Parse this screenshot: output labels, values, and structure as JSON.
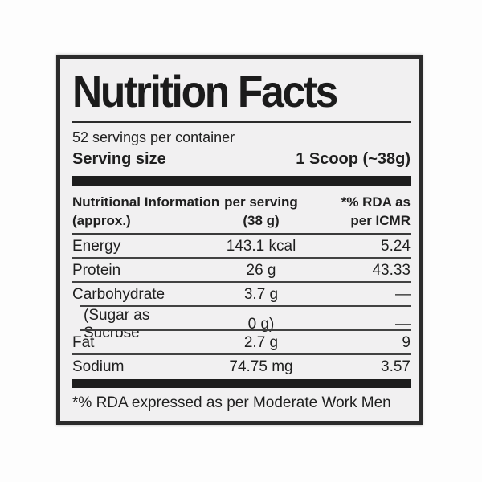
{
  "colors": {
    "label_background": "#f1f0f1",
    "frame_border": "#2c2c2c",
    "text": "#1f1f1f",
    "divider_bar": "#1d1d1d",
    "page_background": "#fdfdfd"
  },
  "header": {
    "title": "Nutrition Facts",
    "servings_per_container": "52 servings per container",
    "serving_size_label": "Serving size",
    "serving_size_value": "1 Scoop (~38g)"
  },
  "table": {
    "columns": {
      "col1_line1": "Nutritional Information",
      "col1_line2": "(approx.)",
      "col2_line1": "per serving",
      "col2_line2": "(38 g)",
      "col3_line1": "*% RDA as",
      "col3_line2": "per ICMR"
    },
    "rows": [
      {
        "name": "Energy",
        "amount": "143.1 kcal",
        "rda": "5.24"
      },
      {
        "name": "Protein",
        "amount": "26 g",
        "rda": "43.33"
      },
      {
        "name": "Carbohydrate",
        "amount": "3.7 g",
        "rda": "—"
      },
      {
        "name": "(Sugar as Sucrose",
        "amount": "0 g)",
        "rda": "—"
      },
      {
        "name": "Fat",
        "amount": "2.7 g",
        "rda": "9"
      },
      {
        "name": "Sodium",
        "amount": "74.75 mg",
        "rda": "3.57"
      }
    ]
  },
  "footnote": "*% RDA expressed as per Moderate Work Men"
}
